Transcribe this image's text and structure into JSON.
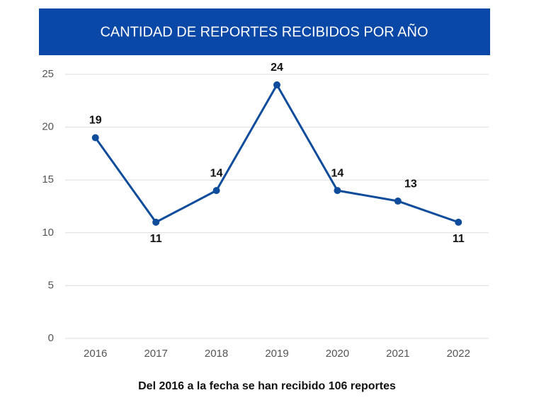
{
  "chart_data": {
    "type": "line",
    "title": "CANTIDAD DE REPORTES RECIBIDOS POR AÑO",
    "subtitle": "Del 2016 a la fecha se han recibido 106 reportes",
    "categories": [
      "2016",
      "2017",
      "2018",
      "2019",
      "2020",
      "2021",
      "2022"
    ],
    "values": [
      19,
      11,
      14,
      24,
      14,
      13,
      11
    ],
    "color": "#0f4c9c",
    "header_color": "#0a48a8",
    "ylim": [
      0,
      25
    ],
    "yticks": [
      0,
      5,
      10,
      15,
      20,
      25
    ],
    "grid": true
  }
}
